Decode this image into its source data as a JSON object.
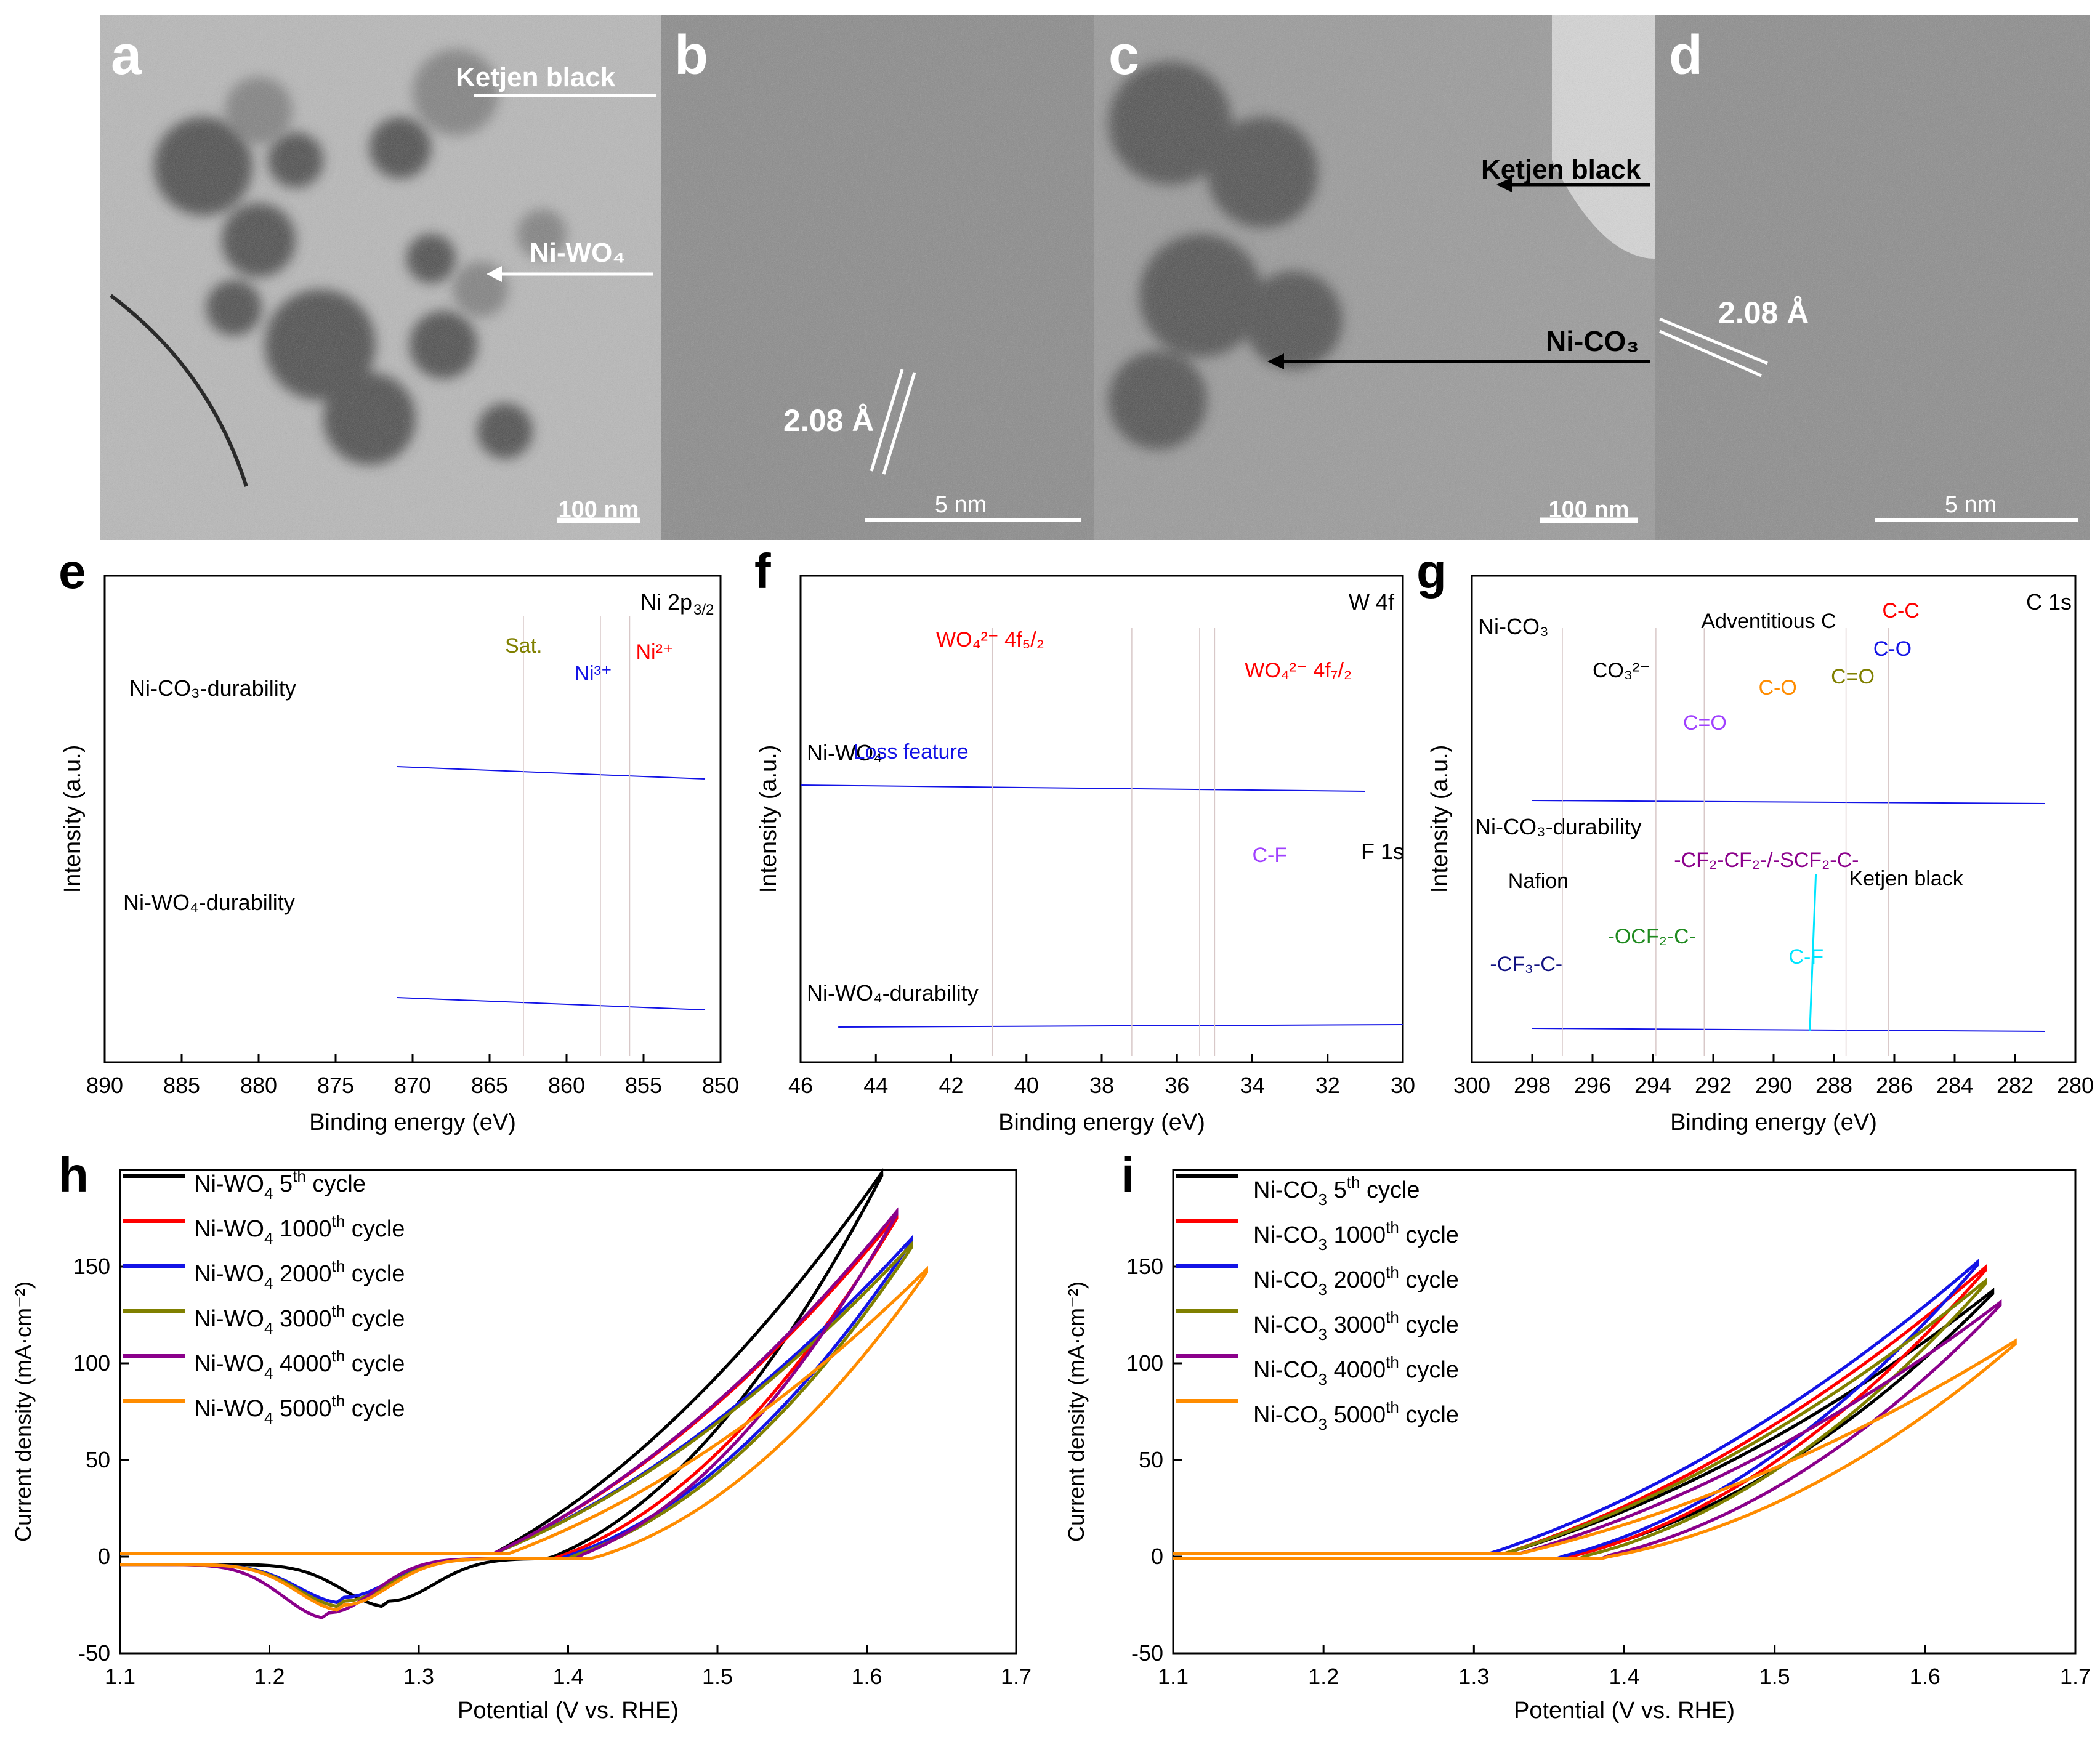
{
  "colors": {
    "black": "#000000",
    "red": "#ff0000",
    "blue": "#1414e6",
    "olive": "#808000",
    "purple": "#8b008b",
    "orange": "#ff8c00",
    "magenta": "#ff66ff",
    "violet": "#a040ff",
    "darkred_purple": "#8b1a5a",
    "green": "#1f8a1f",
    "cyan": "#00e5ff",
    "navy": "#101080"
  },
  "tem": {
    "a": {
      "letter": "a",
      "annotations": [
        "Ketjen black",
        "Ni-WO₄"
      ],
      "scale": "100 nm"
    },
    "b": {
      "letter": "b",
      "annotations": [
        "2.08 Å"
      ],
      "scale": "5 nm"
    },
    "c": {
      "letter": "c",
      "annotations": [
        "Ketjen black",
        "Ni-CO₃"
      ],
      "scale": "100 nm"
    },
    "d": {
      "letter": "d",
      "annotations": [
        "2.08 Å"
      ],
      "scale": "5 nm"
    }
  },
  "chart_data": [
    {
      "panel": "e",
      "type": "line",
      "title": "Ni 2p3/2",
      "xlabel": "Binding energy (eV)",
      "ylabel": "Intensity (a.u.)",
      "xlim": [
        890,
        850
      ],
      "xticks": [
        890,
        885,
        880,
        875,
        870,
        865,
        860,
        855,
        850
      ],
      "traces": [
        "Ni-CO3-durability",
        "Ni-WO4-durability"
      ],
      "peaks": [
        {
          "name": "Sat.",
          "center": 862.8
        },
        {
          "name": "Ni3+",
          "center": 857.8
        },
        {
          "name": "Ni2+",
          "center": 855.9
        }
      ]
    },
    {
      "panel": "f",
      "type": "line",
      "title": "W 4f / F 1s",
      "xlabel": "Binding energy (eV)",
      "ylabel": "Intensity (a.u.)",
      "xlim": [
        46,
        30
      ],
      "xticks": [
        46,
        44,
        42,
        40,
        38,
        36,
        34,
        32,
        30
      ],
      "traces": [
        "Ni-WO4",
        "Ni-WO4-durability"
      ],
      "peaks": [
        {
          "name": "WO4 2- 4f5/2",
          "center": 37.2
        },
        {
          "name": "WO4 2- 4f7/2",
          "center": 35.0
        },
        {
          "name": "Loss feature",
          "center": 40.8
        },
        {
          "name": "C-F",
          "center": 35.4
        }
      ]
    },
    {
      "panel": "g",
      "type": "line",
      "title": "C 1s",
      "xlabel": "Binding energy (eV)",
      "ylabel": "Intensity (a.u.)",
      "xlim": [
        300,
        280
      ],
      "xticks": [
        300,
        298,
        296,
        294,
        292,
        290,
        288,
        286,
        284,
        282,
        280
      ],
      "traces": [
        "Ni-CO3",
        "Ni-CO3-durability"
      ],
      "peaks": [
        {
          "name": "C-C",
          "center": 284.6
        },
        {
          "name": "C-O",
          "center": 286.2
        },
        {
          "name": "C=O",
          "center": 287.6
        },
        {
          "name": "Adventitious C C-O",
          "center": 289.1
        },
        {
          "name": "CO3 2- C=O",
          "center": 291.4
        },
        {
          "name": "-CF2-CF2-/-SCF2-C-",
          "center": 292.3
        },
        {
          "name": "-OCF2-C-",
          "center": 293.9
        },
        {
          "name": "-CF3-C-",
          "center": 297.0
        },
        {
          "name": "C-F",
          "center": 288.8
        }
      ]
    },
    {
      "panel": "h",
      "type": "line",
      "xlabel": "Potential (V vs. RHE)",
      "ylabel": "Current density (mA·cm⁻²)",
      "xlim": [
        1.1,
        1.7
      ],
      "ylim": [
        -50,
        200
      ],
      "xticks": [
        1.1,
        1.2,
        1.3,
        1.4,
        1.5,
        1.6,
        1.7
      ],
      "yticks": [
        -50,
        0,
        50,
        100,
        150
      ],
      "legend": "top-left",
      "series": [
        {
          "name": "Ni-WO4 5th cycle",
          "color": "#000000",
          "cathodic_min": [
            1.28,
            -22
          ],
          "onset": 1.35,
          "end": [
            1.61,
            197
          ]
        },
        {
          "name": "Ni-WO4 1000th cycle",
          "color": "#ff0000",
          "cathodic_min": [
            1.25,
            -22
          ],
          "onset": 1.35,
          "end": [
            1.62,
            175
          ]
        },
        {
          "name": "Ni-WO4 2000th cycle",
          "color": "#1414e6",
          "cathodic_min": [
            1.25,
            -20
          ],
          "onset": 1.35,
          "end": [
            1.63,
            163
          ]
        },
        {
          "name": "Ni-WO4 3000th cycle",
          "color": "#808000",
          "cathodic_min": [
            1.25,
            -22
          ],
          "onset": 1.35,
          "end": [
            1.63,
            160
          ]
        },
        {
          "name": "Ni-WO4 4000th cycle",
          "color": "#8b008b",
          "cathodic_min": [
            1.24,
            -28
          ],
          "onset": 1.35,
          "end": [
            1.62,
            177
          ]
        },
        {
          "name": "Ni-WO4 5000th cycle",
          "color": "#ff8c00",
          "cathodic_min": [
            1.25,
            -24
          ],
          "onset": 1.36,
          "end": [
            1.64,
            147
          ]
        }
      ]
    },
    {
      "panel": "i",
      "type": "line",
      "xlabel": "Potential (V vs. RHE)",
      "ylabel": "Current density (mA·cm⁻²)",
      "xlim": [
        1.1,
        1.7
      ],
      "ylim": [
        -50,
        200
      ],
      "xticks": [
        1.1,
        1.2,
        1.3,
        1.4,
        1.5,
        1.6,
        1.7
      ],
      "yticks": [
        -50,
        0,
        50,
        100,
        150
      ],
      "legend": "top-left",
      "series": [
        {
          "name": "Ni-CO3 5th cycle",
          "color": "#000000",
          "onset": 1.32,
          "end": [
            1.645,
            136
          ]
        },
        {
          "name": "Ni-CO3 1000th cycle",
          "color": "#ff0000",
          "onset": 1.32,
          "end": [
            1.64,
            148
          ]
        },
        {
          "name": "Ni-CO3 2000th cycle",
          "color": "#1414e6",
          "onset": 1.31,
          "end": [
            1.635,
            151
          ]
        },
        {
          "name": "Ni-CO3 3000th cycle",
          "color": "#808000",
          "onset": 1.32,
          "end": [
            1.64,
            141
          ]
        },
        {
          "name": "Ni-CO3 4000th cycle",
          "color": "#8b008b",
          "onset": 1.33,
          "end": [
            1.65,
            130
          ]
        },
        {
          "name": "Ni-CO3 5000th cycle",
          "color": "#ff8c00",
          "onset": 1.33,
          "end": [
            1.66,
            110
          ]
        }
      ]
    }
  ]
}
